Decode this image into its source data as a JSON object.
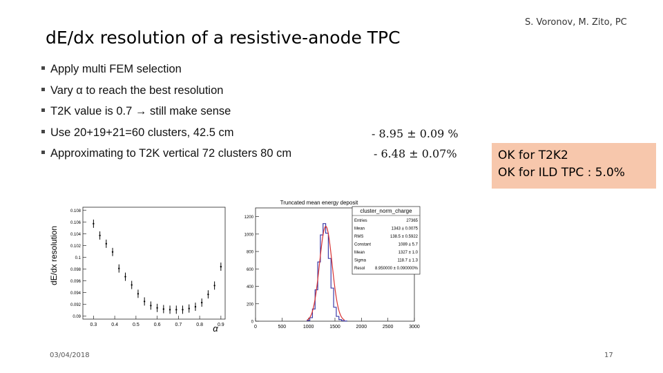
{
  "header": {
    "title": "dE/dx resolution of a resistive-anode TPC",
    "authors": "S. Voronov, M. Zito, PC"
  },
  "bullets": [
    {
      "text": "Apply multi FEM selection"
    },
    {
      "text": "Vary α to reach the best resolution"
    },
    {
      "text": "T2K value is 0.7 → still make sense"
    },
    {
      "text": "Use 20+19+21=60 clusters, 42.5 cm",
      "result": "-  8.95 ± 0.09 %"
    },
    {
      "text": "Approximating  to T2K vertical 72 clusters   80 cm",
      "result": "-  6.48 ± 0.07%"
    }
  ],
  "callout": {
    "line1": "OK for T2K2",
    "line2": "OK for ILD TPC : 5.0%",
    "color": "#f7c7ac"
  },
  "footer": {
    "date": "03/04/2018",
    "page": "17"
  },
  "chart_data": [
    {
      "type": "scatter",
      "title": "",
      "xlabel": "α",
      "ylabel": "dE/dx resolution",
      "xlim": [
        0.25,
        0.92
      ],
      "ylim": [
        0.0895,
        0.1085
      ],
      "xticks": [
        "0.3",
        "0.4",
        "0.5",
        "0.6",
        "0.7",
        "0.8",
        "0.9"
      ],
      "yticks": [
        "0.09",
        "0.092",
        "0.094",
        "0.096",
        "0.098",
        "0.1",
        "0.102",
        "0.104",
        "0.106",
        "0.108"
      ],
      "x": [
        0.3,
        0.33,
        0.36,
        0.39,
        0.42,
        0.45,
        0.48,
        0.51,
        0.54,
        0.57,
        0.6,
        0.63,
        0.66,
        0.69,
        0.72,
        0.75,
        0.78,
        0.81,
        0.84,
        0.87,
        0.9
      ],
      "y": [
        0.1057,
        0.1037,
        0.1023,
        0.1009,
        0.0981,
        0.0967,
        0.0953,
        0.0938,
        0.0925,
        0.0918,
        0.0914,
        0.0912,
        0.0911,
        0.0911,
        0.0911,
        0.0913,
        0.0916,
        0.0923,
        0.0937,
        0.0952,
        0.0984
      ],
      "yerr": [
        0.0007,
        0.0007,
        0.0007,
        0.0007,
        0.0007,
        0.0007,
        0.0007,
        0.0007,
        0.0007,
        0.0007,
        0.0007,
        0.0007,
        0.0007,
        0.0007,
        0.0007,
        0.0007,
        0.0007,
        0.0007,
        0.0007,
        0.0007,
        0.0007
      ],
      "color": "#000000"
    },
    {
      "type": "area",
      "title": "Truncated mean energy deposit",
      "xlim": [
        0,
        3000
      ],
      "ylim": [
        0,
        1300
      ],
      "xticks": [
        "0",
        "500",
        "1000",
        "1500",
        "2000",
        "2500",
        "3000"
      ],
      "yticks": [
        "0",
        "200",
        "400",
        "600",
        "800",
        "1000",
        "1200"
      ],
      "histogram": {
        "x": [
          1000,
          1050,
          1100,
          1150,
          1200,
          1250,
          1300,
          1350,
          1400,
          1450,
          1500,
          1550,
          1600,
          1650,
          1700
        ],
        "y": [
          8,
          40,
          140,
          360,
          680,
          990,
          1120,
          1010,
          720,
          380,
          160,
          55,
          18,
          6,
          2
        ]
      },
      "fit": {
        "constant": 1089,
        "mean": 1327,
        "sigma": 118.7
      },
      "hist_color": "#3a3aa8",
      "fit_color": "#d83030",
      "stats_box": {
        "name": "cluster_norm_charge",
        "rows": [
          {
            "label": "Entries",
            "value": "27365"
          },
          {
            "label": "Mean",
            "value": "1343 ± 0.0075"
          },
          {
            "label": "RMS",
            "value": "138.5 ± 0.5922"
          },
          {
            "label": "Constant",
            "value": "1089 ± 5.7"
          },
          {
            "label": "Mean",
            "value": "1327 ± 1.0"
          },
          {
            "label": "Sigma",
            "value": "118.7 ± 1.3"
          },
          {
            "label": "Resol",
            "value": "8.950000 ± 0.090000%"
          }
        ]
      }
    }
  ]
}
